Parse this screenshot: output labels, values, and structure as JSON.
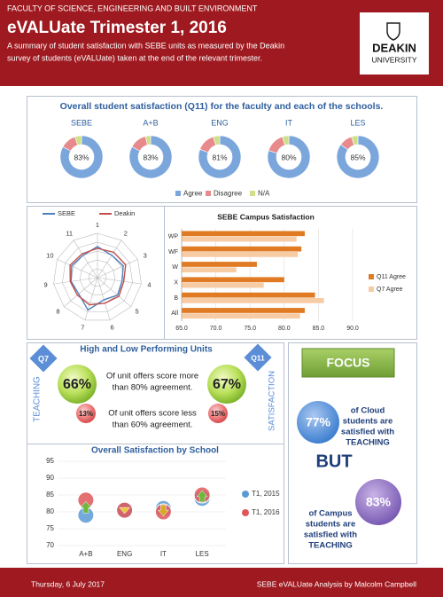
{
  "header": {
    "faculty": "FACULTY OF SCIENCE, ENGINEERING AND BUILT ENVIRONMENT",
    "title": "eVALUate Trimester 1, 2016",
    "subtitle": [
      "A summary of student satisfaction with SEBE units as measured by the Deakin",
      "survey of students (eVALUate) taken at the end of the relevant trimester."
    ],
    "logo": [
      "DEAKIN",
      "UNIVERSITY"
    ]
  },
  "chart_data": [
    {
      "type": "donut",
      "title": "Overall student satisfaction (Q11) for the faculty and each of the schools.",
      "categories": [
        "SEBE",
        "A+B",
        "ENG",
        "IT",
        "LES"
      ],
      "series": [
        {
          "name": "Agree",
          "color": "#7aa6dc",
          "values": [
            83,
            83,
            81,
            80,
            85
          ],
          "value_labels": [
            "83%",
            "83%",
            "81%",
            "80%",
            "85%"
          ]
        },
        {
          "name": "Disagree",
          "color": "#e8898c",
          "values": [
            12,
            13,
            14,
            15,
            10
          ]
        },
        {
          "name": "N/A",
          "color": "#cfe08a",
          "values": [
            5,
            4,
            5,
            5,
            5
          ]
        }
      ]
    },
    {
      "type": "radar",
      "categories": [
        "1",
        "2",
        "3",
        "4",
        "5",
        "6",
        "7",
        "8",
        "9",
        "10",
        "11"
      ],
      "rlim": [
        50,
        100
      ],
      "series": [
        {
          "name": "SEBE",
          "color": "#4f81bd",
          "values": [
            85,
            80,
            82,
            78,
            80,
            76,
            88,
            78,
            80,
            82,
            80
          ]
        },
        {
          "name": "Deakin",
          "color": "#c0504d",
          "values": [
            83,
            84,
            85,
            80,
            82,
            80,
            82,
            80,
            81,
            84,
            82
          ]
        }
      ]
    },
    {
      "type": "bar",
      "orientation": "horizontal",
      "title": "SEBE Campus Satisfaction",
      "categories": [
        "All",
        "B",
        "X",
        "W",
        "WF",
        "WP"
      ],
      "series": [
        {
          "name": "Q11 Agree",
          "color": "#e07b24",
          "values": [
            83,
            84.5,
            80,
            76,
            82.5,
            83
          ]
        },
        {
          "name": "Q7 Agree",
          "color": "#f7cba4",
          "values": [
            82.3,
            85.8,
            77,
            73,
            82,
            81.8
          ]
        }
      ],
      "xlim": [
        65,
        90
      ],
      "xticks": [
        {
          "value": 65,
          "label": "65.0"
        },
        {
          "value": 70,
          "label": "70.0"
        },
        {
          "value": 75,
          "label": "75.0"
        },
        {
          "value": 80,
          "label": "80.0"
        },
        {
          "value": 85,
          "label": "85.0"
        },
        {
          "value": 90,
          "label": "90.0"
        }
      ],
      "grid": true,
      "legend": "right"
    },
    {
      "type": "dot",
      "title": "Overall Satisfaction by School",
      "categories": [
        "A+B",
        "ENG",
        "IT",
        "LES"
      ],
      "series": [
        {
          "name": "T1, 2015",
          "color": "#5b9bd5",
          "values": [
            79,
            80.5,
            81,
            84
          ]
        },
        {
          "name": "T1, 2016",
          "color": "#e0575b",
          "values": [
            83.5,
            80.5,
            80,
            85
          ]
        }
      ],
      "ylim": [
        70,
        95
      ],
      "yticks": [
        70,
        75,
        80,
        85,
        90,
        95
      ],
      "grid": true,
      "legend": "right"
    }
  ],
  "performance": {
    "title": "High and Low Performing Units",
    "left_tag": "Q7",
    "left_label": "TEACHING",
    "right_tag": "Q11",
    "right_label": "SATISFACTION",
    "teaching_high": "66%",
    "teaching_low": "13%",
    "satisfaction_high": "67%",
    "satisfaction_low": "15%",
    "high_text": [
      "Of unit offers score more",
      "than 80% agreement."
    ],
    "low_text": [
      "Of unit offers score less",
      "than 60% agreement."
    ]
  },
  "focus": {
    "button": "FOCUS",
    "cloud_value": "77%",
    "cloud_text": [
      "of Cloud",
      "students are",
      "satisfied with",
      "TEACHING"
    ],
    "but": "BUT",
    "campus_value": "83%",
    "campus_text": [
      "of Campus",
      "students are",
      "satisfied with",
      "TEACHING"
    ]
  },
  "footer": {
    "date": "Thursday, 6 July 2017",
    "credit": "SEBE eVALUate Analysis by Malcolm Campbell"
  }
}
